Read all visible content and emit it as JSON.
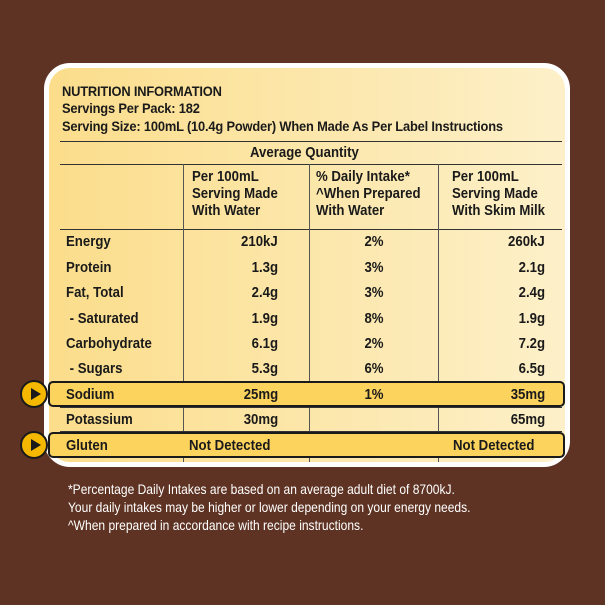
{
  "header": {
    "title": "NUTRITION INFORMATION",
    "servings": "Servings Per Pack: 182",
    "serving_size": "Serving Size: 100mL (10.4g Powder) When Made As Per Label Instructions"
  },
  "average_quantity": "Average Quantity",
  "columns": {
    "water": [
      "Per 100mL",
      "Serving Made",
      "With Water"
    ],
    "daily": [
      "% Daily Intake*",
      "^When Prepared",
      "With Water"
    ],
    "skim": [
      "Per 100mL",
      "Serving Made",
      "With Skim Milk"
    ]
  },
  "rows": [
    {
      "name": "Energy",
      "water": "210kJ",
      "daily": "2%",
      "skim": "260kJ"
    },
    {
      "name": "Protein",
      "water": "1.3g",
      "daily": "3%",
      "skim": "2.1g"
    },
    {
      "name": "Fat, Total",
      "water": "2.4g",
      "daily": "3%",
      "skim": "2.4g"
    },
    {
      "name": " - Saturated",
      "water": "1.9g",
      "daily": "8%",
      "skim": "1.9g"
    },
    {
      "name": "Carbohydrate",
      "water": "6.1g",
      "daily": "2%",
      "skim": "7.2g"
    },
    {
      "name": " - Sugars",
      "water": "5.3g",
      "daily": "6%",
      "skim": "6.5g"
    },
    {
      "name": "Sodium",
      "water": "25mg",
      "daily": "1%",
      "skim": "35mg"
    },
    {
      "name": "Potassium",
      "water": "30mg",
      "daily": "",
      "skim": "65mg"
    }
  ],
  "gluten": {
    "name": "Gluten",
    "water": "Not Detected",
    "skim": "Not Detected"
  },
  "footnotes": [
    "*Percentage Daily Intakes are based on an average adult diet of 8700kJ.",
    "Your daily intakes may be higher or lower depending on your energy needs.",
    "^When prepared in accordance with recipe instructions."
  ],
  "colors": {
    "background": "#5e3323",
    "panel": "#fbdd8b",
    "highlight": "#fcd35d",
    "arrow": "#f4b800"
  }
}
